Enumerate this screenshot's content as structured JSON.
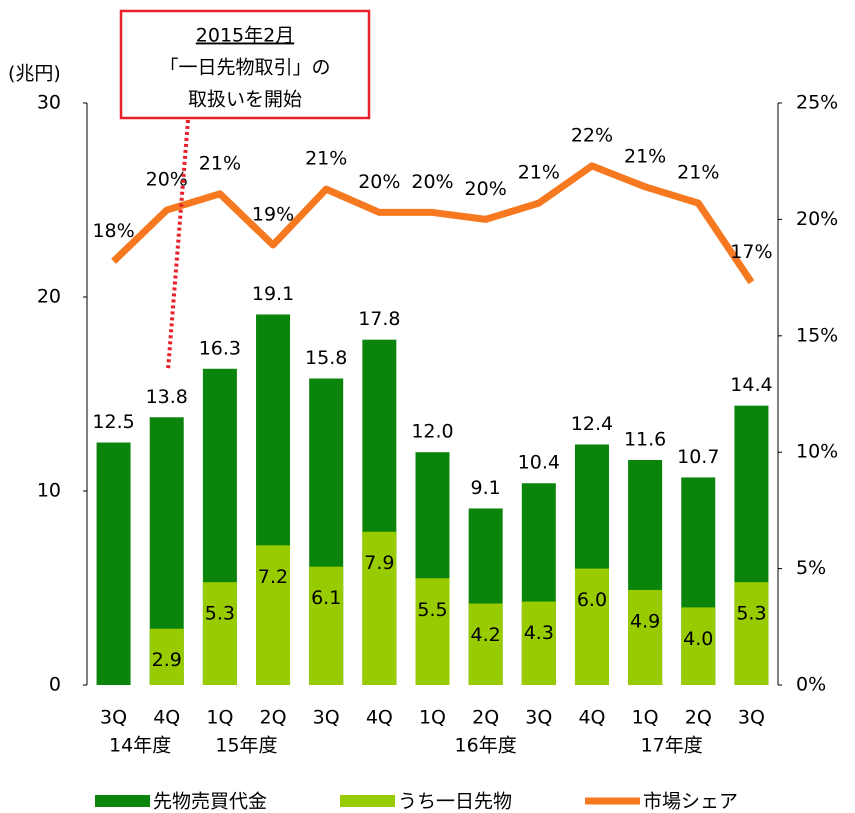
{
  "chart_data": {
    "type": "bar",
    "y_axis_label": "(兆円)",
    "annotation": {
      "lines": [
        "2015年2月",
        "「一日先物取引」の",
        "取扱いを開始"
      ],
      "color": "#e8202a"
    },
    "categories": [
      "3Q",
      "4Q",
      "1Q",
      "2Q",
      "3Q",
      "4Q",
      "1Q",
      "2Q",
      "3Q",
      "4Q",
      "1Q",
      "2Q",
      "3Q"
    ],
    "groups": [
      {
        "name": "14年度",
        "start": 0,
        "end": 1
      },
      {
        "name": "15年度",
        "start": 2,
        "end": 3
      },
      {
        "name": "16年度",
        "start": 6,
        "end": 8
      },
      {
        "name": "17年度",
        "start": 10,
        "end": 11
      }
    ],
    "series": [
      {
        "name": "先物売買代金",
        "color": "#0b840b",
        "values": [
          12.5,
          13.8,
          16.3,
          19.1,
          15.8,
          17.8,
          12.0,
          9.1,
          10.4,
          12.4,
          11.6,
          10.7,
          14.4
        ],
        "value_labels": [
          "12.5",
          "13.8",
          "16.3",
          "19.1",
          "15.8",
          "17.8",
          "12.0",
          "9.1",
          "10.4",
          "12.4",
          "11.6",
          "10.7",
          "14.4"
        ]
      },
      {
        "name": "うち一日先物",
        "color": "#99cc00",
        "values": [
          null,
          2.9,
          5.3,
          7.2,
          6.1,
          7.9,
          5.5,
          4.2,
          4.3,
          6.0,
          4.9,
          4.0,
          5.3
        ],
        "value_labels": [
          null,
          "2.9",
          "5.3",
          "7.2",
          "6.1",
          "7.9",
          "5.5",
          "4.2",
          "4.3",
          "6.0",
          "4.9",
          "4.0",
          "5.3"
        ]
      },
      {
        "name": "市場シェア",
        "color": "#f7791f",
        "type": "line",
        "axis": "y2",
        "values": [
          18.2,
          20.4,
          21.1,
          18.9,
          21.3,
          20.3,
          20.3,
          20.0,
          20.7,
          22.3,
          21.4,
          20.7,
          17.3
        ],
        "value_labels": [
          "18%",
          "20%",
          "21%",
          "19%",
          "21%",
          "20%",
          "20%",
          "20%",
          "21%",
          "22%",
          "21%",
          "21%",
          "17%"
        ]
      }
    ],
    "ylim": [
      0,
      30
    ],
    "yticks": [
      0,
      10,
      20,
      30
    ],
    "y2lim": [
      0,
      25
    ],
    "y2ticks": [
      {
        "value": 0,
        "label": "0%"
      },
      {
        "value": 5,
        "label": "5%"
      },
      {
        "value": 10,
        "label": "10%"
      },
      {
        "value": 15,
        "label": "15%"
      },
      {
        "value": 20,
        "label": "20%"
      },
      {
        "value": 25,
        "label": "25%"
      }
    ],
    "legend": "bottom"
  }
}
